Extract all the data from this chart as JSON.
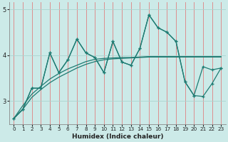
{
  "xlabel": "Humidex (Indice chaleur)",
  "bg_color": "#cceae8",
  "grid_color": "#aad4d0",
  "line_color": "#1e7b72",
  "x_values": [
    0,
    1,
    2,
    3,
    4,
    5,
    6,
    7,
    8,
    9,
    10,
    11,
    12,
    13,
    14,
    15,
    16,
    17,
    18,
    19,
    20,
    21,
    22,
    23
  ],
  "series1": [
    2.62,
    2.82,
    3.28,
    3.28,
    4.05,
    3.62,
    3.9,
    4.35,
    4.05,
    3.95,
    3.62,
    4.3,
    3.85,
    3.78,
    4.15,
    4.88,
    4.6,
    4.5,
    4.3,
    3.42,
    3.12,
    3.75,
    3.68,
    3.72
  ],
  "series2": [
    2.62,
    2.82,
    3.28,
    3.28,
    4.05,
    3.62,
    3.9,
    4.35,
    4.05,
    3.95,
    3.62,
    4.3,
    3.85,
    3.78,
    4.15,
    4.88,
    4.6,
    4.5,
    4.3,
    3.42,
    3.12,
    3.1,
    3.38,
    3.72
  ],
  "trend1": [
    2.62,
    2.82,
    3.08,
    3.25,
    3.4,
    3.52,
    3.62,
    3.72,
    3.8,
    3.86,
    3.9,
    3.92,
    3.93,
    3.94,
    3.95,
    3.96,
    3.96,
    3.96,
    3.96,
    3.96,
    3.96,
    3.96,
    3.96,
    3.96
  ],
  "trend2": [
    2.62,
    2.9,
    3.15,
    3.32,
    3.48,
    3.6,
    3.7,
    3.78,
    3.86,
    3.91,
    3.93,
    3.94,
    3.95,
    3.95,
    3.96,
    3.97,
    3.97,
    3.97,
    3.97,
    3.97,
    3.97,
    3.97,
    3.97,
    3.97
  ],
  "ylim": [
    2.5,
    5.15
  ],
  "yticks": [
    3,
    4,
    5
  ],
  "xlim": [
    -0.5,
    23.5
  ]
}
